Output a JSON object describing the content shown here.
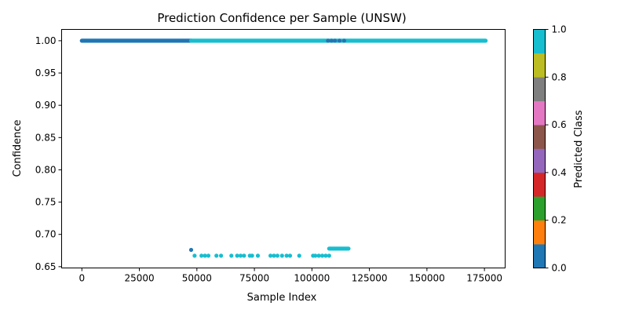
{
  "chart_data": {
    "type": "scatter",
    "title": "Prediction Confidence per Sample (UNSW)",
    "xlabel": "Sample Index",
    "ylabel": "Confidence",
    "xlim": [
      -8800,
      184000
    ],
    "ylim": [
      0.648,
      1.0175
    ],
    "xticks": [
      0,
      25000,
      50000,
      75000,
      100000,
      125000,
      150000,
      175000
    ],
    "xtick_labels": [
      "0",
      "25000",
      "50000",
      "75000",
      "100000",
      "125000",
      "150000",
      "175000"
    ],
    "yticks": [
      0.65,
      0.7,
      0.75,
      0.8,
      0.85,
      0.9,
      0.95,
      1.0
    ],
    "ytick_labels": [
      "0.65",
      "0.70",
      "0.75",
      "0.80",
      "0.85",
      "0.90",
      "0.95",
      "1.00"
    ],
    "grid": false,
    "colorbar": {
      "label": "Predicted Class",
      "colormap": "tab10",
      "range": [
        0.0,
        1.0
      ],
      "ticks": [
        0.0,
        0.2,
        0.4,
        0.6,
        0.8,
        1.0
      ],
      "tick_labels": [
        "0.0",
        "0.2",
        "0.4",
        "0.6",
        "0.8",
        "1.0"
      ],
      "colors": [
        "#1f77b4",
        "#ff7f0e",
        "#2ca02c",
        "#d62728",
        "#9467bd",
        "#8c564b",
        "#e377c2",
        "#7f7f7f",
        "#bcbd22",
        "#17becf"
      ]
    },
    "series": [
      {
        "class": 0,
        "color": "#1f77b4",
        "band": {
          "x_start": 0,
          "x_end": 47500,
          "y": 1.0
        },
        "extra_x_at_1": [
          107000,
          108500,
          110000,
          112000,
          114000
        ],
        "points": [
          [
            47500,
            0.676
          ]
        ]
      },
      {
        "class": 1,
        "color": "#17becf",
        "band": {
          "x_start": 47500,
          "x_end": 175500,
          "y": 1.0
        },
        "high_x_range": [
          107500,
          116000
        ],
        "high_y": 0.678,
        "low_y": 0.667,
        "low_x": [
          49000,
          52000,
          53500,
          55000,
          58500,
          60500,
          65000,
          67500,
          69000,
          70500,
          73000,
          74000,
          76500,
          82000,
          83500,
          85000,
          87000,
          89000,
          90500,
          94500,
          100500,
          101500,
          103000,
          104500,
          106000,
          107500
        ]
      }
    ]
  }
}
